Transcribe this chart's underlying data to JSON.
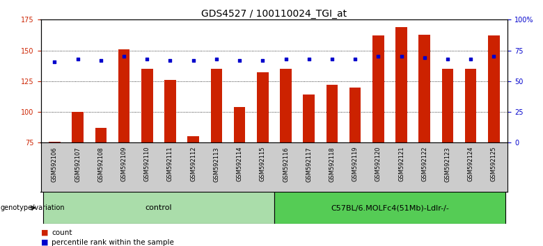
{
  "title": "GDS4527 / 100110024_TGI_at",
  "samples": [
    "GSM592106",
    "GSM592107",
    "GSM592108",
    "GSM592109",
    "GSM592110",
    "GSM592111",
    "GSM592112",
    "GSM592113",
    "GSM592114",
    "GSM592115",
    "GSM592116",
    "GSM592117",
    "GSM592118",
    "GSM592119",
    "GSM592120",
    "GSM592121",
    "GSM592122",
    "GSM592123",
    "GSM592124",
    "GSM592125"
  ],
  "counts": [
    76,
    100,
    87,
    151,
    135,
    126,
    80,
    135,
    104,
    132,
    135,
    114,
    122,
    120,
    162,
    169,
    163,
    135,
    135,
    162
  ],
  "percentile_ranks": [
    66,
    68,
    67,
    70,
    68,
    67,
    67,
    68,
    67,
    67,
    68,
    68,
    68,
    68,
    70,
    70,
    69,
    68,
    68,
    70
  ],
  "groups": [
    "control",
    "control",
    "control",
    "control",
    "control",
    "control",
    "control",
    "control",
    "control",
    "control",
    "C57BL/6.MOLFc4(51Mb)-Ldlr-/-",
    "C57BL/6.MOLFc4(51Mb)-Ldlr-/-",
    "C57BL/6.MOLFc4(51Mb)-Ldlr-/-",
    "C57BL/6.MOLFc4(51Mb)-Ldlr-/-",
    "C57BL/6.MOLFc4(51Mb)-Ldlr-/-",
    "C57BL/6.MOLFc4(51Mb)-Ldlr-/-",
    "C57BL/6.MOLFc4(51Mb)-Ldlr-/-",
    "C57BL/6.MOLFc4(51Mb)-Ldlr-/-",
    "C57BL/6.MOLFc4(51Mb)-Ldlr-/-",
    "C57BL/6.MOLFc4(51Mb)-Ldlr-/-"
  ],
  "bar_color": "#cc2200",
  "dot_color": "#0000cc",
  "ylim_left": [
    75,
    175
  ],
  "yticks_left": [
    75,
    100,
    125,
    150,
    175
  ],
  "ylim_right": [
    0,
    100
  ],
  "yticks_right": [
    0,
    25,
    50,
    75,
    100
  ],
  "yticklabels_right": [
    "0",
    "25",
    "50",
    "75",
    "100%"
  ],
  "group_colors": {
    "control": "#aaddaa",
    "C57BL/6.MOLFc4(51Mb)-Ldlr-/-": "#55cc55"
  },
  "genotype_label": "genotype/variation",
  "legend_count_label": "count",
  "legend_pct_label": "percentile rank within the sample",
  "bar_width": 0.5,
  "background_color": "#ffffff",
  "plot_bg_color": "#ffffff",
  "grid_color": "#000000",
  "tick_color_left": "#cc2200",
  "tick_color_right": "#0000cc",
  "title_fontsize": 10,
  "axis_fontsize": 7,
  "label_fontsize": 7,
  "label_area_color": "#cccccc"
}
